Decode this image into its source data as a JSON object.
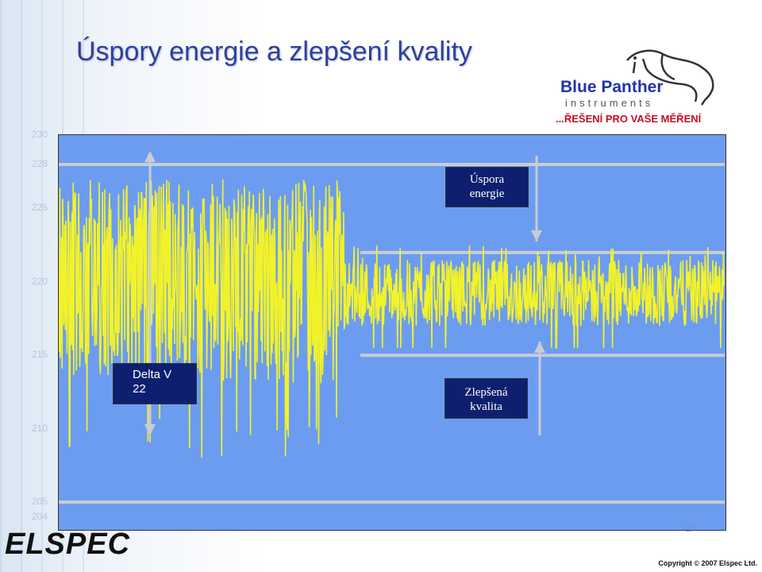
{
  "slide": {
    "title": "Úspory energie a zlepšení kvality",
    "logo": {
      "name": "Blue Panther",
      "sub": "instruments",
      "tagline": "...ŘEŠENÍ PRO VAŠE MĚŘENÍ"
    },
    "footer": {
      "brand": "ELSPEC",
      "copyright": "Copyright © 2007 Elspec Ltd.",
      "page_number": "17"
    }
  },
  "colors": {
    "plot_background": "#6c9cf0",
    "trace": "#f2f22a",
    "reference_lines": "#c8ccd6",
    "label_box": "#0d1f6e",
    "title": "#2b3fa5",
    "tagline": "#c0102a",
    "brand_blue": "#2233aa"
  },
  "chart_data": {
    "type": "line",
    "title": "",
    "xlabel": "",
    "ylabel": "",
    "ylim": [
      203,
      230
    ],
    "y_ticks": [
      "230",
      "228",
      "225",
      "220",
      "215",
      "210",
      "205",
      "204"
    ],
    "y_tick_values": [
      230,
      228,
      225,
      220,
      215,
      210,
      205,
      204
    ],
    "grid": false,
    "reference_lines": [
      228,
      222,
      215,
      205
    ],
    "segments": [
      {
        "phase": "before",
        "center": 221,
        "amplitude_min": 208,
        "amplitude_max": 227
      },
      {
        "phase": "after",
        "center": 219,
        "amplitude_min": 216,
        "amplitude_max": 221
      }
    ],
    "annotations": {
      "energy_saving": "Úspora\nenergie",
      "improved_quality": "Zlepšená\nkvalita",
      "delta_label": "Delta V",
      "delta_value": "22"
    }
  }
}
